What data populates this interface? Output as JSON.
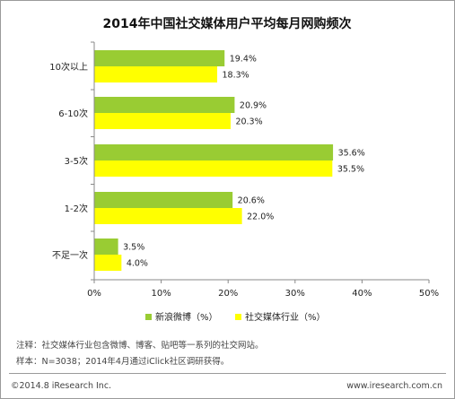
{
  "chart_data": {
    "type": "bar",
    "orientation": "horizontal",
    "title": "2014年中国社交媒体用户平均每月网购频次",
    "categories": [
      "10次以上",
      "6-10次",
      "3-5次",
      "1-2次",
      "不足一次"
    ],
    "series": [
      {
        "name": "新浪微博（%）",
        "values": [
          19.4,
          20.9,
          35.6,
          20.6,
          3.5
        ],
        "labels": [
          "19.4%",
          "20.9%",
          "35.6%",
          "20.6%",
          "3.5%"
        ],
        "color": "#99cc33"
      },
      {
        "name": "社交媒体行业（%）",
        "values": [
          18.3,
          20.3,
          35.5,
          22.0,
          4.0
        ],
        "labels": [
          "18.3%",
          "20.3%",
          "35.5%",
          "22.0%",
          "4.0%"
        ],
        "color": "#ffff00"
      }
    ],
    "xlim": [
      0,
      50
    ],
    "xticks": [
      "0%",
      "10%",
      "20%",
      "30%",
      "40%",
      "50%"
    ],
    "grid": false,
    "legend_position": "bottom"
  },
  "notes": {
    "note1": "注释：社交媒体行业包含微博、博客、贴吧等一系列的社交网站。",
    "note2": "样本：N=3038；2014年4月通过iClick社区调研获得。"
  },
  "footer": {
    "copyright": "©2014.8 iResearch Inc.",
    "website": "www.iresearch.com.cn"
  }
}
